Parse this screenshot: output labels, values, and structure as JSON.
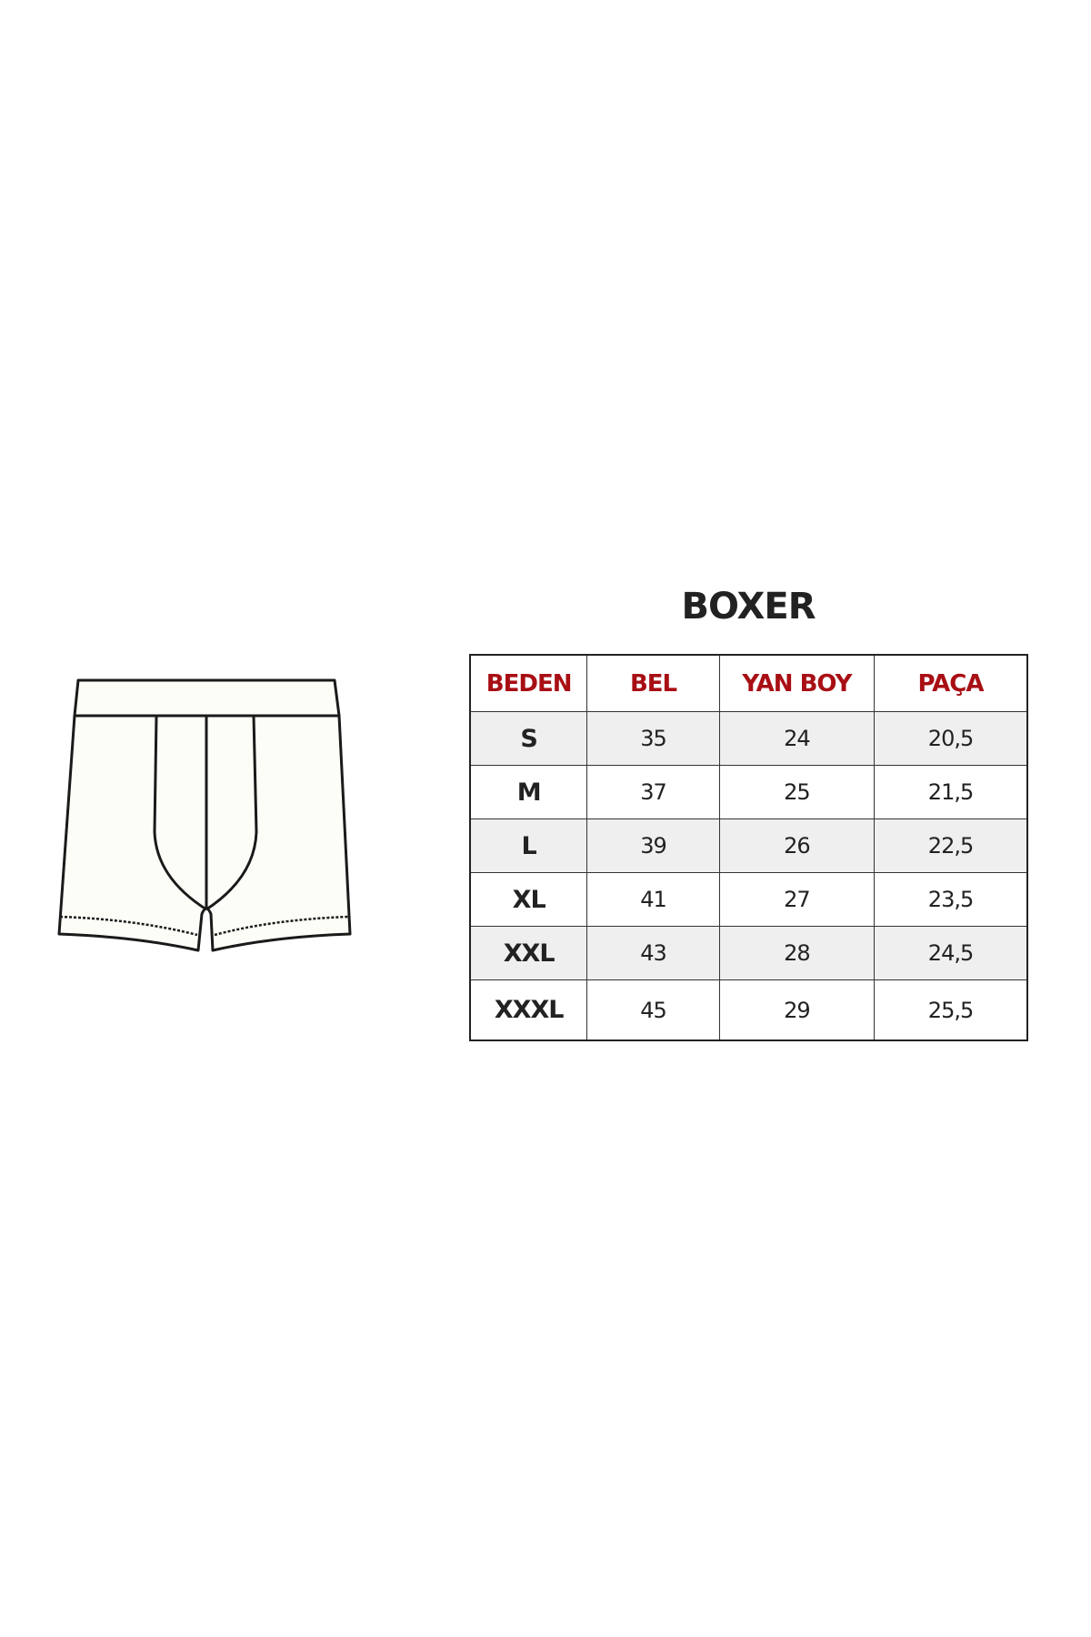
{
  "title": "BOXER",
  "colors": {
    "header_text": "#a80f14",
    "row_stripe": "#efefef",
    "line": "#222222"
  },
  "illustration": "boxer-briefs-line-drawing",
  "table": {
    "headers": [
      "BEDEN",
      "BEL",
      "YAN BOY",
      "PAÇA"
    ],
    "rows": [
      [
        "S",
        "35",
        "24",
        "20,5"
      ],
      [
        "M",
        "37",
        "25",
        "21,5"
      ],
      [
        "L",
        "39",
        "26",
        "22,5"
      ],
      [
        "XL",
        "41",
        "27",
        "23,5"
      ],
      [
        "XXL",
        "43",
        "28",
        "24,5"
      ],
      [
        "XXXL",
        "45",
        "29",
        "25,5"
      ]
    ]
  }
}
